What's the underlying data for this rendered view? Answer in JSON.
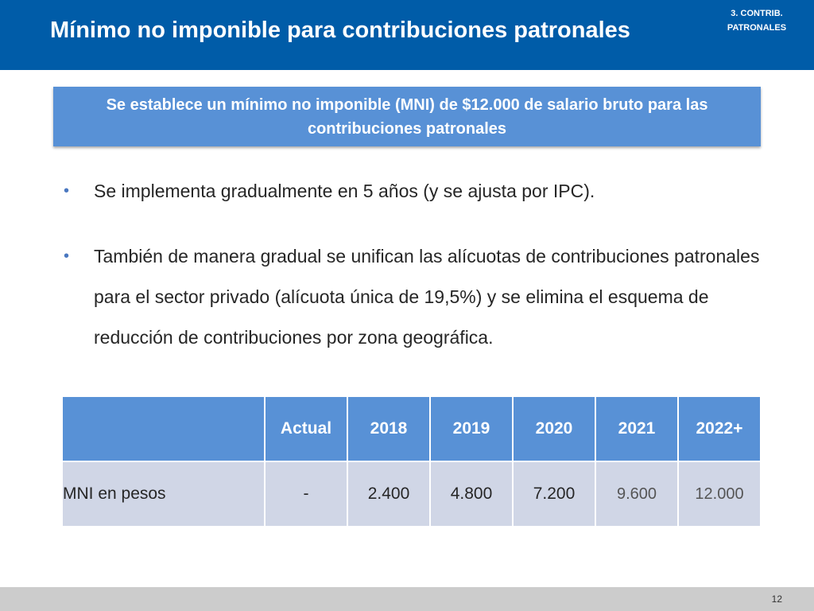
{
  "header": {
    "title": "Mínimo no imponible para contribuciones patronales",
    "section_tag_line1": "3. CONTRIB.",
    "section_tag_line2": "PATRONALES"
  },
  "highlight": {
    "text": "Se establece un mínimo no imponible (MNI) de $12.000 de salario bruto para las contribuciones patronales"
  },
  "bullets": [
    "Se implementa gradualmente en 5 años (y se ajusta por IPC).",
    "También de manera gradual se unifican las alícuotas de contribuciones patronales para el sector privado (alícuota única de 19,5%) y se elimina el esquema de reducción de contribuciones por zona geográfica."
  ],
  "bullet_symbol": "•",
  "table": {
    "headers": [
      "",
      "Actual",
      "2018",
      "2019",
      "2020",
      "2021",
      "2022+"
    ],
    "row": {
      "label": "MNI en pesos",
      "values": [
        "-",
        "2.400",
        "4.800",
        "7.200",
        "9.600",
        "12.000"
      ]
    }
  },
  "footer": {
    "page_number": "12"
  },
  "colors": {
    "header_blue": "#005ca8",
    "accent_blue": "#5891d6",
    "table_body": "#d0d6e6",
    "footer_gray": "#cccccc"
  }
}
